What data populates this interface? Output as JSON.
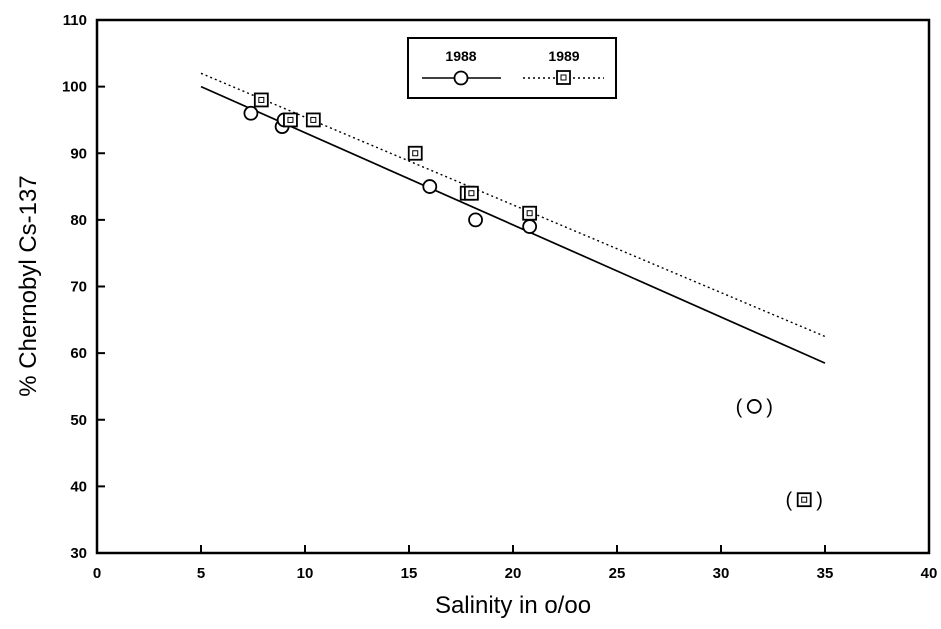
{
  "chart_data": {
    "type": "scatter",
    "title": "",
    "xlabel": "Salinity in o/oo",
    "ylabel": "% Chernobyl Cs-137",
    "xlim": [
      0,
      40
    ],
    "ylim": [
      30,
      110
    ],
    "xticks": [
      0,
      5,
      10,
      15,
      20,
      25,
      30,
      35,
      40
    ],
    "yticks": [
      30,
      40,
      50,
      60,
      70,
      80,
      90,
      100,
      110
    ],
    "grid": false,
    "legend_position": "top-center",
    "series": [
      {
        "name": "1988",
        "marker": "circle",
        "line_style": "solid",
        "points": [
          [
            7.4,
            96
          ],
          [
            8.9,
            94
          ],
          [
            9.0,
            95
          ],
          [
            16.0,
            85
          ],
          [
            18.2,
            80
          ],
          [
            20.8,
            79
          ]
        ],
        "excluded_points": [
          [
            31.6,
            52
          ]
        ],
        "fit_line": [
          [
            5,
            100
          ],
          [
            35,
            58.5
          ]
        ]
      },
      {
        "name": "1989",
        "marker": "square",
        "line_style": "dotted",
        "points": [
          [
            7.9,
            98
          ],
          [
            9.3,
            95
          ],
          [
            10.4,
            95
          ],
          [
            15.3,
            90
          ],
          [
            17.8,
            84
          ],
          [
            18.0,
            84
          ],
          [
            20.8,
            81
          ]
        ],
        "excluded_points": [
          [
            34.0,
            38
          ]
        ],
        "fit_line": [
          [
            5,
            102
          ],
          [
            35,
            62.5
          ]
        ]
      }
    ]
  }
}
